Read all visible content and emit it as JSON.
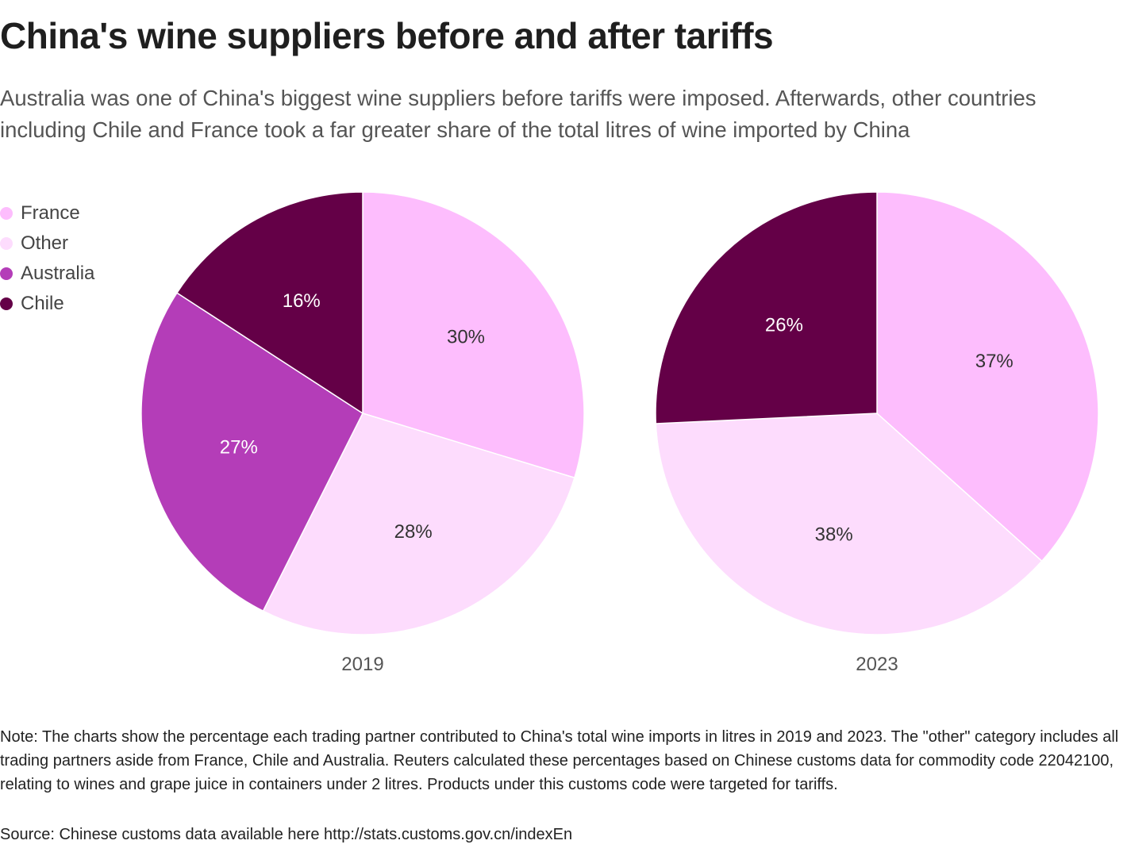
{
  "title": "China's wine suppliers before and after tariffs",
  "subtitle": "Australia was one of China's biggest wine suppliers before tariffs were imposed. Afterwards, other countries including Chile and France took a far greater share of the total litres of wine imported by China",
  "legend": [
    {
      "label": "France",
      "color": "#fdbdfd"
    },
    {
      "label": "Other",
      "color": "#fddcfd"
    },
    {
      "label": "Australia",
      "color": "#b43db8"
    },
    {
      "label": "Chile",
      "color": "#640047"
    }
  ],
  "chart_data": [
    {
      "type": "pie",
      "title": "2019",
      "categories": [
        "France",
        "Other",
        "Australia",
        "Chile"
      ],
      "values": [
        30,
        28,
        27,
        16
      ],
      "labels": [
        "30%",
        "28%",
        "27%",
        "16%"
      ]
    },
    {
      "type": "pie",
      "title": "2023",
      "categories": [
        "France",
        "Other",
        "Australia",
        "Chile"
      ],
      "values": [
        37,
        38,
        0,
        26
      ],
      "labels": [
        "37%",
        "38%",
        "",
        "26%"
      ]
    }
  ],
  "footnote": "Note: The charts show the percentage each trading partner contributed to China's total wine imports in litres in 2019 and 2023. The \"other\" category includes all trading partners aside from France, Chile and Australia. Reuters calculated these percentages based on Chinese customs data for commodity code 22042100, relating to wines and grape juice in containers under 2 litres. Products under this customs code were targeted for tariffs.",
  "source": "Source: Chinese customs data available here http://stats.customs.gov.cn/indexEn"
}
